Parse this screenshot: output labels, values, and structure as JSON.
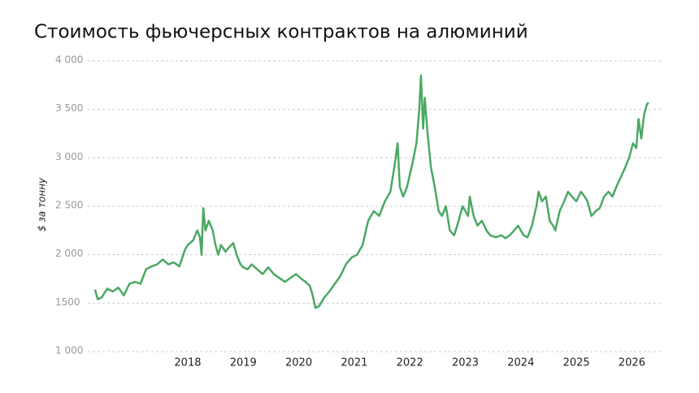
{
  "chart_data": {
    "type": "line",
    "title": "Стоимость фьючерсных контрактов на алюминий",
    "y_label": "$ за тонну",
    "x": [
      2016.33,
      2016.38,
      2016.45,
      2016.55,
      2016.65,
      2016.75,
      2016.85,
      2016.95,
      2017.05,
      2017.15,
      2017.25,
      2017.35,
      2017.45,
      2017.55,
      2017.65,
      2017.75,
      2017.85,
      2017.95,
      2018.0,
      2018.1,
      2018.17,
      2018.22,
      2018.25,
      2018.28,
      2018.32,
      2018.38,
      2018.45,
      2018.5,
      2018.55,
      2018.6,
      2018.68,
      2018.75,
      2018.82,
      2018.88,
      2018.95,
      2019.0,
      2019.08,
      2019.15,
      2019.25,
      2019.35,
      2019.45,
      2019.55,
      2019.65,
      2019.75,
      2019.85,
      2019.95,
      2020.05,
      2020.12,
      2020.2,
      2020.25,
      2020.3,
      2020.37,
      2020.45,
      2020.55,
      2020.65,
      2020.75,
      2020.85,
      2020.95,
      2021.05,
      2021.15,
      2021.25,
      2021.35,
      2021.45,
      2021.55,
      2021.65,
      2021.72,
      2021.78,
      2021.82,
      2021.88,
      2021.95,
      2022.05,
      2022.12,
      2022.17,
      2022.2,
      2022.24,
      2022.27,
      2022.32,
      2022.38,
      2022.45,
      2022.52,
      2022.58,
      2022.65,
      2022.72,
      2022.8,
      2022.88,
      2022.95,
      2023.05,
      2023.08,
      2023.15,
      2023.22,
      2023.3,
      2023.38,
      2023.45,
      2023.55,
      2023.65,
      2023.72,
      2023.8,
      2023.88,
      2023.95,
      2024.05,
      2024.12,
      2024.2,
      2024.28,
      2024.32,
      2024.38,
      2024.45,
      2024.52,
      2024.58,
      2024.62,
      2024.7,
      2024.78,
      2024.85,
      2024.92,
      2025.0,
      2025.08,
      2025.15,
      2025.2,
      2025.27,
      2025.35,
      2025.42,
      2025.5,
      2025.58,
      2025.65,
      2025.72,
      2025.8,
      2025.88,
      2025.95,
      2026.02,
      2026.08,
      2026.12,
      2026.17,
      2026.22,
      2026.27,
      2026.3
    ],
    "series": [
      {
        "color": "#4ba862",
        "values": [
          1640,
          1540,
          1560,
          1650,
          1620,
          1660,
          1580,
          1700,
          1720,
          1700,
          1850,
          1880,
          1900,
          1950,
          1900,
          1920,
          1880,
          2050,
          2100,
          2150,
          2250,
          2180,
          2000,
          2480,
          2250,
          2350,
          2250,
          2100,
          2000,
          2100,
          2030,
          2080,
          2120,
          2000,
          1900,
          1870,
          1850,
          1900,
          1850,
          1800,
          1870,
          1800,
          1760,
          1720,
          1760,
          1800,
          1750,
          1720,
          1680,
          1580,
          1450,
          1470,
          1550,
          1620,
          1700,
          1780,
          1900,
          1970,
          2000,
          2100,
          2350,
          2450,
          2400,
          2550,
          2650,
          2900,
          3150,
          2700,
          2600,
          2700,
          2950,
          3150,
          3500,
          3850,
          3300,
          3620,
          3250,
          2900,
          2700,
          2450,
          2400,
          2500,
          2250,
          2200,
          2350,
          2500,
          2400,
          2600,
          2400,
          2300,
          2350,
          2250,
          2200,
          2180,
          2200,
          2170,
          2200,
          2250,
          2300,
          2200,
          2180,
          2300,
          2500,
          2650,
          2550,
          2600,
          2350,
          2300,
          2250,
          2450,
          2550,
          2650,
          2600,
          2550,
          2650,
          2600,
          2550,
          2400,
          2450,
          2480,
          2600,
          2650,
          2600,
          2700,
          2800,
          2900,
          3000,
          3150,
          3100,
          3400,
          3200,
          3450,
          3550,
          3570
        ]
      }
    ],
    "xlim": [
      2016.2,
      2026.55
    ],
    "xticks": [
      2018,
      2019,
      2020,
      2021,
      2022,
      2023,
      2024,
      2025,
      2026
    ],
    "ylim": [
      1000,
      4000
    ],
    "yticks": [
      {
        "value": 1000,
        "label": "1 000"
      },
      1500,
      {
        "value": 2000,
        "label": "2 000"
      },
      {
        "value": 2500,
        "label": "2 500"
      },
      {
        "value": 3000,
        "label": "3 000"
      },
      {
        "value": 3500,
        "label": "3 500"
      },
      {
        "value": 4000,
        "label": "4 000"
      }
    ],
    "grid": true
  }
}
